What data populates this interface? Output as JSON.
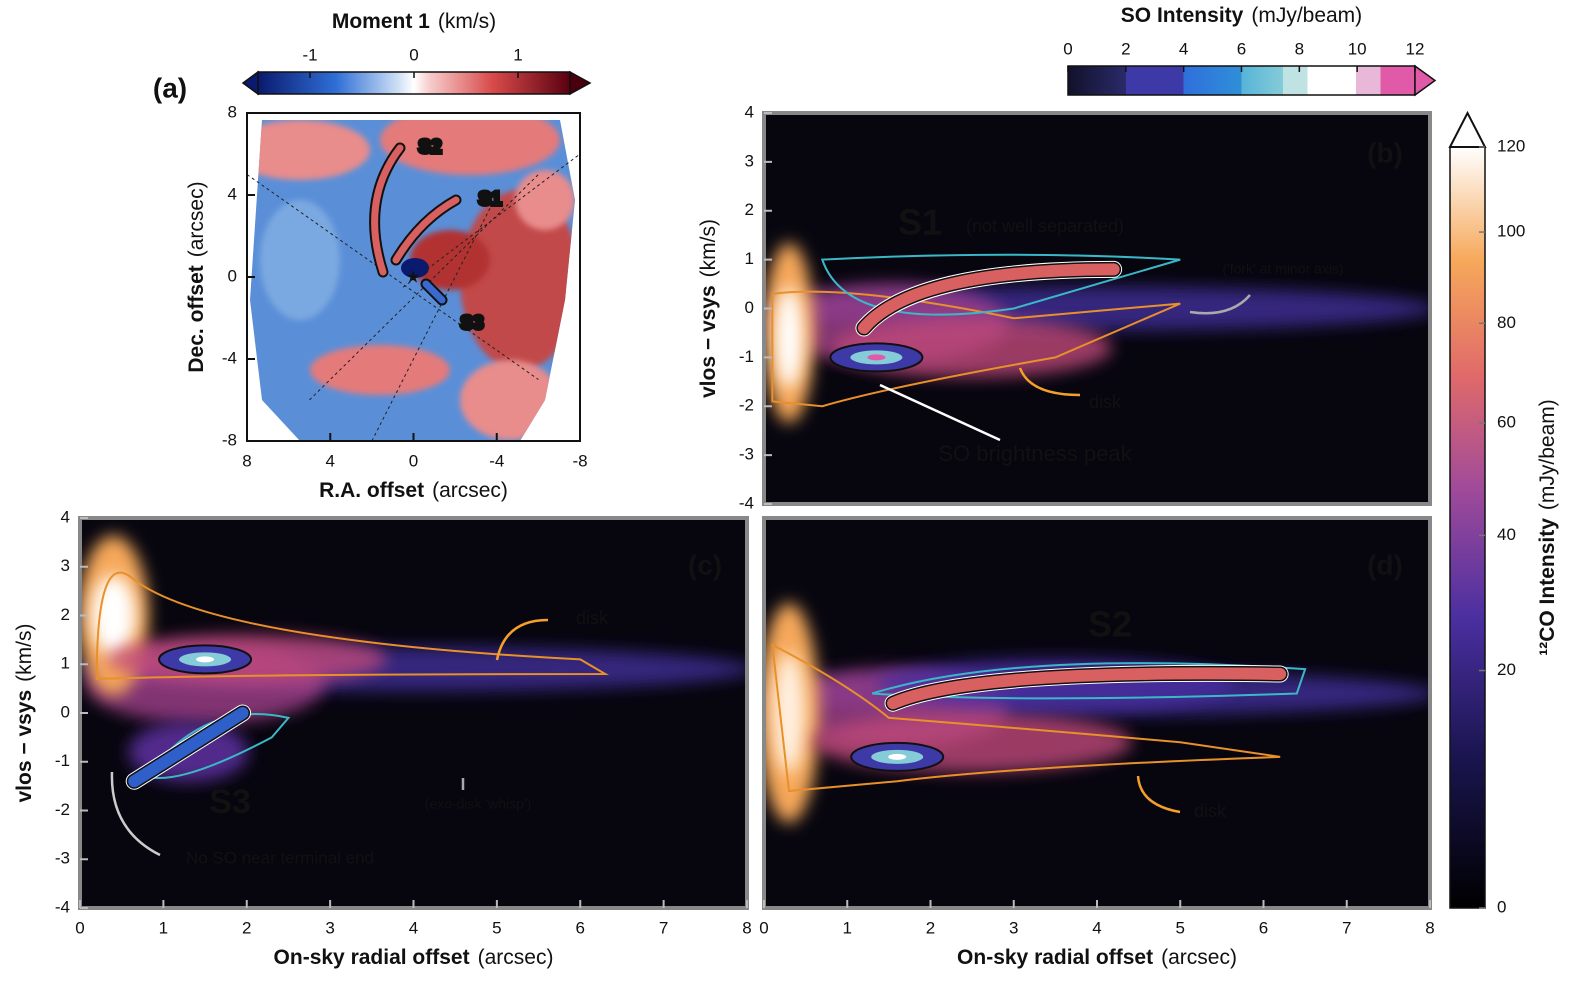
{
  "chart_data": [
    {
      "type": "image",
      "panel": "(a)",
      "xlabel": "R.A. offset",
      "xunit": "(arcsec)",
      "ylabel": "Dec. offset",
      "yunit": "(arcsec)",
      "xlim": [
        8,
        -8
      ],
      "ylim": [
        -8,
        8
      ],
      "xticks": [
        8,
        4,
        0,
        -4,
        -8
      ],
      "yticks": [
        -8,
        -4,
        0,
        4,
        8
      ],
      "annotations": [
        "S2",
        "S1",
        "S3"
      ]
    },
    {
      "type": "image",
      "panel": "(b)",
      "ylabel": "vlos − vsys",
      "yunit": "(km/s)",
      "xlim": [
        0,
        8
      ],
      "ylim": [
        -4,
        4
      ],
      "yticks": [
        -4,
        -3,
        -2,
        -1,
        0,
        1,
        2,
        3,
        4
      ],
      "annotations": [
        "S1",
        "(not well separated)",
        "('fork' at minor axis)",
        "disk",
        "SO brightness peak"
      ]
    },
    {
      "type": "image",
      "panel": "(c)",
      "xlabel": "On-sky radial offset",
      "xunit": "(arcsec)",
      "ylabel": "vlos − vsys",
      "yunit": "(km/s)",
      "xlim": [
        0,
        8
      ],
      "ylim": [
        -4,
        4
      ],
      "xticks": [
        0,
        1,
        2,
        3,
        4,
        5,
        6,
        7,
        8
      ],
      "yticks": [
        -4,
        -3,
        -2,
        -1,
        0,
        1,
        2,
        3,
        4
      ],
      "annotations": [
        "disk",
        "S3",
        "(exo-disk 'whisp')",
        "No SO near terminal end"
      ]
    },
    {
      "type": "image",
      "panel": "(d)",
      "xlabel": "On-sky radial offset",
      "xunit": "(arcsec)",
      "xlim": [
        0,
        8
      ],
      "ylim": [
        -4,
        4
      ],
      "xticks": [
        0,
        1,
        2,
        3,
        4,
        5,
        6,
        7,
        8
      ],
      "annotations": [
        "S2",
        "disk"
      ]
    },
    {
      "type": "colorbar",
      "label": "Moment 1",
      "unit": "(km/s)",
      "xlim": [
        -1.5,
        1.5
      ],
      "xticks": [
        -1,
        0,
        1
      ]
    },
    {
      "type": "colorbar",
      "label": "SO Intensity",
      "unit": "(mJy/beam)",
      "xlim": [
        0,
        12
      ],
      "xticks": [
        0,
        2,
        4,
        6,
        8,
        10,
        12
      ]
    },
    {
      "type": "colorbar",
      "label": "¹²CO Intensity",
      "unit": "(mJy/beam)",
      "ylim": [
        0,
        120
      ],
      "yticks": [
        0,
        20,
        40,
        60,
        80,
        100,
        120
      ],
      "scale_exponent": 0.65
    }
  ]
}
